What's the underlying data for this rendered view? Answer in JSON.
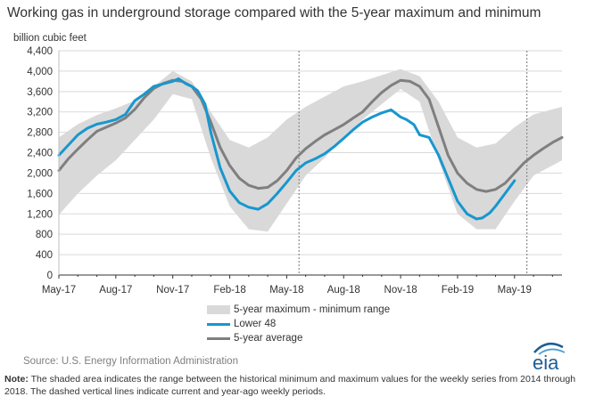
{
  "header": {
    "title": "Working gas in underground  storage compared with the 5-year maximum and minimum",
    "y_unit": "billion cubic feet"
  },
  "legend": {
    "range_label": "5-year maximum - minimum range",
    "lower48_label": "Lower 48",
    "avg_label": "5-year average"
  },
  "footer": {
    "source": "Source:  U.S. Energy Information Administration",
    "note_prefix": "Note:",
    "note_text": " The shaded area indicates the range between the historical minimum and maximum values for the weekly series from 2014 through 2018. The dashed vertical lines indicate current and year-ago weekly periods.",
    "logo_text": "eia"
  },
  "colors": {
    "lower48": "#1797cf",
    "average": "#7f7f7f",
    "range": "#d9d9d9",
    "grid": "#d9d9d9",
    "logo": "#1b5e96"
  },
  "chart_data": {
    "type": "area",
    "x_tick_labels": [
      "May-17",
      "Aug-17",
      "Nov-17",
      "Feb-18",
      "May-18",
      "Aug-18",
      "Nov-18",
      "Feb-19",
      "May-19"
    ],
    "x_tick_months": [
      0,
      3,
      6,
      9,
      12,
      15,
      18,
      21,
      24
    ],
    "x_range_months": [
      0,
      26.5
    ],
    "ylabel": "billion cubic feet",
    "ylim": [
      0,
      4400
    ],
    "y_ticks": [
      0,
      400,
      800,
      1200,
      1600,
      2000,
      2400,
      2800,
      3200,
      3600,
      4000,
      4400
    ],
    "y_tick_labels": [
      "0",
      "400",
      "800",
      "1,200",
      "1,600",
      "2,000",
      "2,400",
      "2,800",
      "3,200",
      "3,600",
      "4,000",
      "4,400"
    ],
    "grid": true,
    "dashed_vertical_lines_months": [
      12.65,
      24.65
    ],
    "series": [
      {
        "name": "5-year maximum - minimum range",
        "kind": "band",
        "x": [
          0,
          1,
          2,
          3,
          4,
          5,
          6,
          7,
          8,
          9,
          10,
          11,
          12,
          13,
          14,
          15,
          16,
          17,
          18,
          19,
          20,
          21,
          22,
          23,
          24,
          25,
          26.5
        ],
        "max": [
          2700,
          2960,
          3140,
          3270,
          3420,
          3700,
          4000,
          3800,
          3200,
          2650,
          2500,
          2700,
          3050,
          3300,
          3500,
          3700,
          3800,
          3920,
          4040,
          3900,
          3400,
          2700,
          2500,
          2580,
          2900,
          3150,
          3300
        ],
        "min": [
          1180,
          1600,
          1950,
          2250,
          2650,
          3050,
          3550,
          3450,
          2300,
          1350,
          900,
          850,
          1400,
          1950,
          2300,
          2700,
          3050,
          3350,
          3650,
          3400,
          2250,
          1200,
          900,
          900,
          1450,
          1950,
          2250
        ]
      },
      {
        "name": "Lower 48",
        "x": [
          0,
          0.5,
          1,
          1.5,
          2,
          2.5,
          3,
          3.5,
          4,
          4.5,
          5,
          5.5,
          6,
          6.3,
          6.7,
          7,
          7.3,
          7.7,
          8,
          8.5,
          9,
          9.5,
          10,
          10.5,
          11,
          11.5,
          12,
          12.5,
          13,
          13.5,
          14,
          14.5,
          15,
          15.5,
          16,
          16.5,
          17,
          17.5,
          18,
          18.3,
          18.7,
          19,
          19.5,
          20,
          20.5,
          21,
          21.5,
          22,
          22.3,
          22.7,
          23,
          23.5,
          24
        ],
        "y": [
          2350,
          2550,
          2750,
          2880,
          2960,
          3000,
          3050,
          3150,
          3420,
          3550,
          3700,
          3750,
          3800,
          3850,
          3750,
          3700,
          3620,
          3350,
          2800,
          2100,
          1650,
          1420,
          1330,
          1290,
          1400,
          1600,
          1820,
          2050,
          2200,
          2280,
          2380,
          2520,
          2680,
          2850,
          3000,
          3100,
          3180,
          3240,
          3100,
          3050,
          2950,
          2750,
          2700,
          2350,
          1900,
          1450,
          1200,
          1100,
          1120,
          1220,
          1350,
          1600,
          1850
        ]
      },
      {
        "name": "5-year average",
        "x": [
          0,
          0.5,
          1,
          1.5,
          2,
          2.5,
          3,
          3.5,
          4,
          4.5,
          5,
          5.5,
          6,
          6.5,
          7,
          7.5,
          8,
          8.5,
          9,
          9.5,
          10,
          10.5,
          11,
          11.5,
          12,
          12.5,
          13,
          13.5,
          14,
          14.5,
          15,
          15.5,
          16,
          16.5,
          17,
          17.5,
          18,
          18.5,
          19,
          19.5,
          20,
          20.5,
          21,
          21.5,
          22,
          22.5,
          23,
          23.5,
          24,
          24.5,
          25,
          25.5,
          26,
          26.5
        ],
        "y": [
          2050,
          2280,
          2470,
          2650,
          2820,
          2900,
          2980,
          3080,
          3250,
          3480,
          3660,
          3760,
          3820,
          3800,
          3700,
          3450,
          3000,
          2500,
          2150,
          1900,
          1760,
          1700,
          1720,
          1850,
          2050,
          2300,
          2480,
          2620,
          2750,
          2850,
          2950,
          3080,
          3200,
          3400,
          3580,
          3720,
          3820,
          3800,
          3700,
          3450,
          2900,
          2350,
          2000,
          1800,
          1680,
          1640,
          1680,
          1800,
          2000,
          2200,
          2350,
          2480,
          2600,
          2700
        ]
      }
    ]
  }
}
